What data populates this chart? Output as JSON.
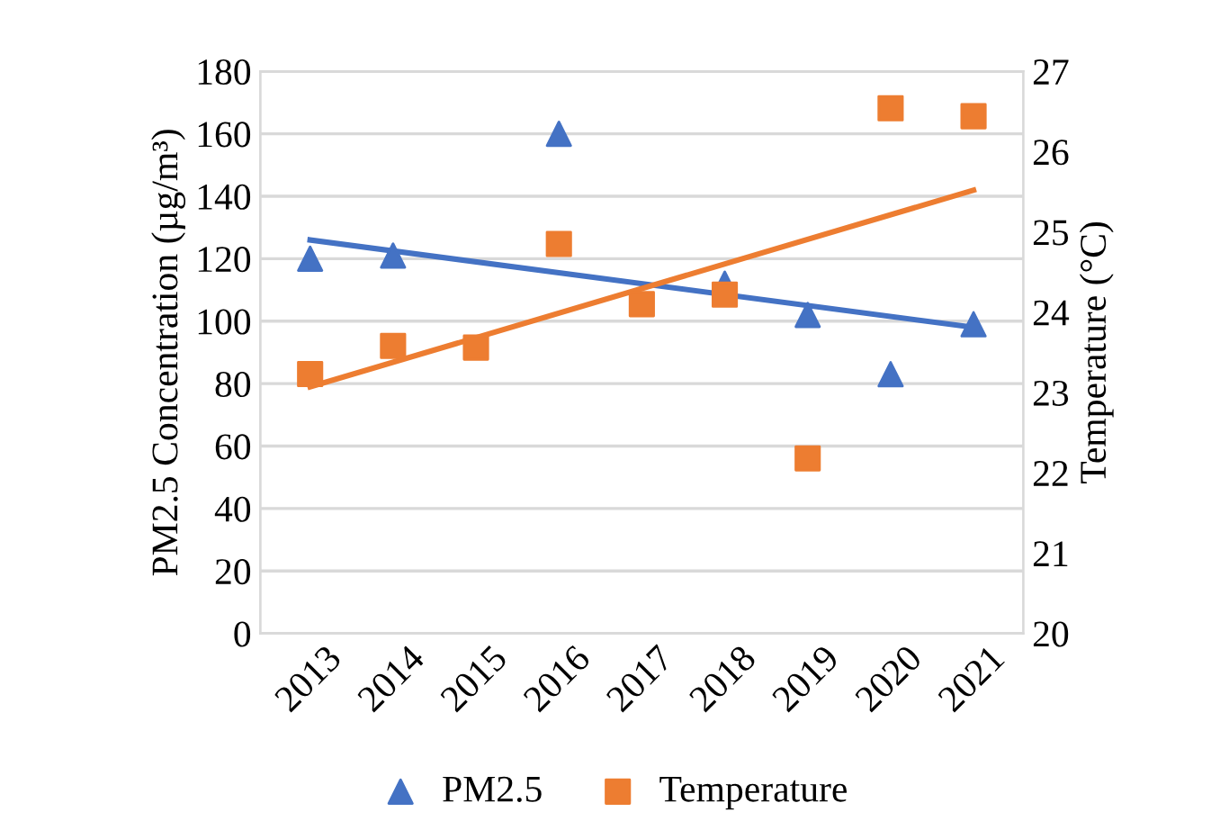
{
  "chart_data": {
    "type": "scatter",
    "categories": [
      "2013",
      "2014",
      "2015",
      "2016",
      "2017",
      "2018",
      "2019",
      "2020",
      "2021"
    ],
    "ylabel": "PM2.5 Concentration (µg/m³)",
    "y2label": "Temperature (°C)",
    "ylim": [
      0,
      180
    ],
    "yticks": [
      0,
      20,
      40,
      60,
      80,
      100,
      120,
      140,
      160,
      180
    ],
    "y2lim": [
      20,
      27
    ],
    "y2ticks": [
      20,
      21,
      22,
      23,
      24,
      25,
      26,
      27
    ],
    "grid": "y",
    "legend": "bottom",
    "series": [
      {
        "name": "PM2.5",
        "marker": "triangle",
        "color": "#4472c4",
        "values": [
          120,
          121,
          null,
          160,
          null,
          112,
          102,
          83,
          99
        ]
      },
      {
        "name": "Temperature",
        "marker": "square",
        "axis": "y2",
        "color": "#ed7d31",
        "values": [
          23.23,
          23.58,
          23.56,
          24.85,
          24.1,
          24.22,
          22.18,
          26.54,
          26.44
        ]
      },
      {
        "type": "line",
        "marker": "none",
        "color": "#4472c4",
        "values": [
          126,
          null,
          null,
          null,
          null,
          null,
          null,
          null,
          98
        ]
      },
      {
        "type": "line",
        "marker": "none",
        "axis": "y2",
        "color": "#ed7d31",
        "values": [
          23.07,
          null,
          null,
          null,
          null,
          null,
          null,
          null,
          25.52
        ]
      }
    ]
  }
}
